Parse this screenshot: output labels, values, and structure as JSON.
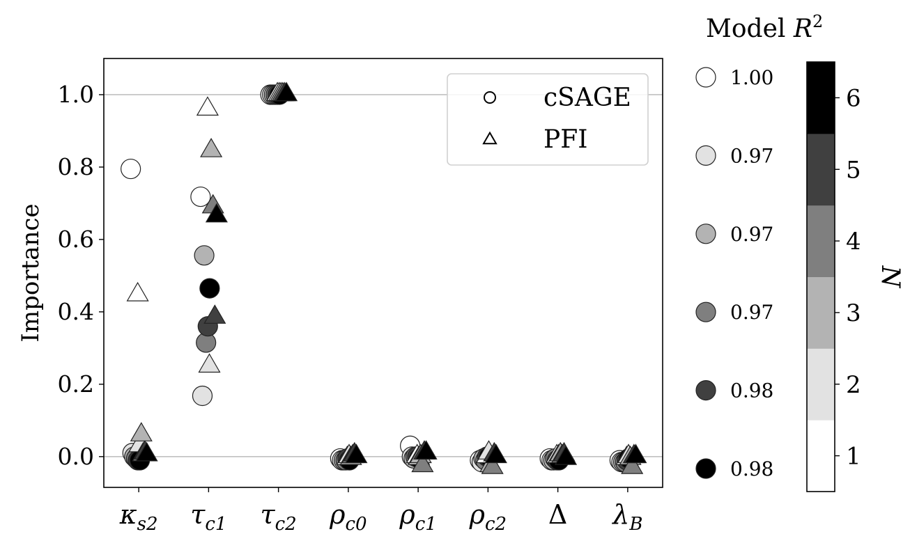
{
  "chart_data": {
    "type": "scatter",
    "title": "",
    "xlabel": "",
    "ylabel": "Importance",
    "ylim": [
      -0.085,
      1.1
    ],
    "yticks": [
      0.0,
      0.2,
      0.4,
      0.6,
      0.8,
      1.0
    ],
    "ytick_labels": [
      "0.0",
      "0.2",
      "0.4",
      "0.6",
      "0.8",
      "1.0"
    ],
    "grid": "horizontal at 0.0 and 1.0",
    "categories": [
      {
        "main": "κ",
        "sub": "s2"
      },
      {
        "main": "τ",
        "sub": "c1"
      },
      {
        "main": "τ",
        "sub": "c2"
      },
      {
        "main": "ρ",
        "sub": "c0"
      },
      {
        "main": "ρ",
        "sub": "c1"
      },
      {
        "main": "ρ",
        "sub": "c2"
      },
      {
        "main": "Δ",
        "sub": ""
      },
      {
        "main": "λ",
        "sub": "B"
      }
    ],
    "legend": {
      "placement": "top-right",
      "entries": [
        {
          "label": "cSAGE",
          "marker": "circle"
        },
        {
          "label": "PFI",
          "marker": "triangle"
        }
      ]
    },
    "shade_colors": [
      "#ffffff",
      "#e2e2e2",
      "#b3b3b3",
      "#7f7f7f",
      "#404040",
      "#000000"
    ],
    "colorbar": {
      "label": "N",
      "levels": [
        "1",
        "2",
        "3",
        "4",
        "5",
        "6"
      ]
    },
    "r2_key": {
      "title": "Model",
      "title_symbol": "R",
      "title_sup": "2",
      "values": [
        "1.00",
        "0.97",
        "0.97",
        "0.97",
        "0.98",
        "0.98"
      ]
    },
    "series": [
      {
        "method": "cSAGE",
        "N": 1,
        "points": [
          [
            0,
            0.795
          ],
          [
            1,
            0.718
          ],
          [
            2,
            1.0
          ],
          [
            3,
            -0.005
          ],
          [
            4,
            0.03
          ],
          [
            5,
            -0.01
          ],
          [
            6,
            -0.005
          ],
          [
            7,
            -0.01
          ]
        ]
      },
      {
        "method": "cSAGE",
        "N": 2,
        "points": [
          [
            0,
            0.01
          ],
          [
            1,
            0.168
          ],
          [
            2,
            1.0
          ],
          [
            3,
            -0.01
          ],
          [
            4,
            0.0
          ],
          [
            5,
            -0.015
          ],
          [
            6,
            -0.01
          ],
          [
            7,
            -0.015
          ]
        ]
      },
      {
        "method": "cSAGE",
        "N": 3,
        "points": [
          [
            0,
            0.0
          ],
          [
            1,
            0.556
          ],
          [
            2,
            1.0
          ],
          [
            3,
            -0.01
          ],
          [
            4,
            -0.005
          ],
          [
            5,
            -0.005
          ],
          [
            6,
            -0.01
          ],
          [
            7,
            -0.015
          ]
        ]
      },
      {
        "method": "cSAGE",
        "N": 4,
        "points": [
          [
            0,
            -0.005
          ],
          [
            1,
            0.315
          ],
          [
            2,
            1.0
          ],
          [
            3,
            -0.01
          ],
          [
            4,
            0.0
          ],
          [
            5,
            -0.01
          ],
          [
            6,
            -0.005
          ],
          [
            7,
            -0.015
          ]
        ]
      },
      {
        "method": "cSAGE",
        "N": 5,
        "points": [
          [
            0,
            -0.01
          ],
          [
            1,
            0.36
          ],
          [
            2,
            1.0
          ],
          [
            3,
            -0.005
          ],
          [
            4,
            0.0
          ],
          [
            5,
            0.0
          ],
          [
            6,
            -0.01
          ],
          [
            7,
            -0.01
          ]
        ]
      },
      {
        "method": "cSAGE",
        "N": 6,
        "points": [
          [
            0,
            -0.01
          ],
          [
            1,
            0.465
          ],
          [
            2,
            1.0
          ],
          [
            3,
            -0.01
          ],
          [
            4,
            -0.005
          ],
          [
            5,
            0.0
          ],
          [
            6,
            -0.01
          ],
          [
            7,
            -0.005
          ]
        ]
      },
      {
        "method": "PFI",
        "N": 1,
        "points": [
          [
            0,
            0.447
          ],
          [
            1,
            0.96
          ],
          [
            2,
            1.0
          ],
          [
            3,
            -0.005
          ],
          [
            4,
            0.0
          ],
          [
            5,
            0.0
          ],
          [
            6,
            0.0
          ],
          [
            7,
            -0.005
          ]
        ]
      },
      {
        "method": "PFI",
        "N": 2,
        "points": [
          [
            0,
            0.03
          ],
          [
            1,
            0.25
          ],
          [
            2,
            1.0
          ],
          [
            3,
            0.0
          ],
          [
            4,
            -0.005
          ],
          [
            5,
            0.01
          ],
          [
            6,
            0.0
          ],
          [
            7,
            0.0
          ]
        ]
      },
      {
        "method": "PFI",
        "N": 3,
        "points": [
          [
            0,
            0.06
          ],
          [
            1,
            0.845
          ],
          [
            2,
            1.0
          ],
          [
            3,
            -0.005
          ],
          [
            4,
            0.0
          ],
          [
            5,
            -0.025
          ],
          [
            6,
            0.005
          ],
          [
            7,
            -0.005
          ]
        ]
      },
      {
        "method": "PFI",
        "N": 4,
        "points": [
          [
            0,
            0.005
          ],
          [
            1,
            0.69
          ],
          [
            2,
            1.0
          ],
          [
            3,
            0.0
          ],
          [
            4,
            -0.025
          ],
          [
            5,
            -0.03
          ],
          [
            6,
            0.0
          ],
          [
            7,
            -0.03
          ]
        ]
      },
      {
        "method": "PFI",
        "N": 5,
        "points": [
          [
            0,
            0.01
          ],
          [
            1,
            0.385
          ],
          [
            2,
            1.0
          ],
          [
            3,
            0.005
          ],
          [
            4,
            0.01
          ],
          [
            5,
            0.005
          ],
          [
            6,
            0.005
          ],
          [
            7,
            0.0
          ]
        ]
      },
      {
        "method": "PFI",
        "N": 6,
        "points": [
          [
            0,
            0.005
          ],
          [
            1,
            0.665
          ],
          [
            2,
            1.0
          ],
          [
            3,
            0.0
          ],
          [
            4,
            0.01
          ],
          [
            5,
            0.0
          ],
          [
            6,
            -0.005
          ],
          [
            7,
            0.0
          ]
        ]
      }
    ]
  }
}
